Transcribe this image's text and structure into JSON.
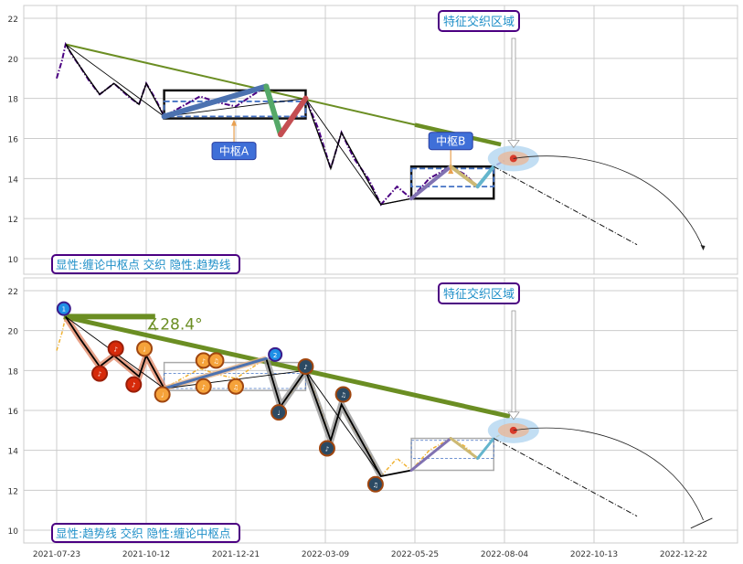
{
  "chart_data": [
    {
      "type": "line",
      "panel": "top",
      "ylim": [
        9.4,
        22.6
      ],
      "yticks": [
        10,
        12,
        14,
        16,
        18,
        20,
        22
      ],
      "xticks": [
        {
          "i": 0,
          "label": "2021-07-23"
        },
        {
          "i": 50,
          "label": "2021-10-12"
        },
        {
          "i": 100,
          "label": "2021-12-21"
        },
        {
          "i": 150,
          "label": "2022-03-09"
        },
        {
          "i": 200,
          "label": "2022-05-25"
        },
        {
          "i": 250,
          "label": "2022-08-04"
        },
        {
          "i": 300,
          "label": "2022-10-13"
        },
        {
          "i": 350,
          "label": "2022-12-22"
        }
      ],
      "grid": true,
      "price": [
        [
          0,
          19.0
        ],
        [
          3,
          19.9
        ],
        [
          5,
          20.7
        ],
        [
          9,
          20.1
        ],
        [
          13,
          19.6
        ],
        [
          18,
          18.9
        ],
        [
          24,
          18.2
        ],
        [
          32,
          18.75
        ],
        [
          40,
          18.1
        ],
        [
          46,
          17.7
        ],
        [
          50,
          18.75
        ],
        [
          55,
          18.0
        ],
        [
          60,
          17.1
        ],
        [
          70,
          17.6
        ],
        [
          80,
          18.1
        ],
        [
          90,
          17.8
        ],
        [
          100,
          17.6
        ],
        [
          110,
          18.2
        ],
        [
          117,
          18.6
        ],
        [
          125,
          16.2
        ],
        [
          132,
          17.0
        ],
        [
          139,
          18.0
        ],
        [
          146,
          16.5
        ],
        [
          153,
          14.5
        ],
        [
          159,
          16.3
        ],
        [
          166,
          15.0
        ],
        [
          174,
          14.0
        ],
        [
          181,
          12.7
        ],
        [
          190,
          13.6
        ],
        [
          198,
          13.0
        ],
        [
          208,
          14.0
        ],
        [
          220,
          14.6
        ],
        [
          228,
          14.2
        ],
        [
          235,
          13.6
        ],
        [
          244,
          14.6
        ],
        [
          250,
          14.9
        ]
      ],
      "pivots": [
        [
          5,
          20.7
        ],
        [
          13,
          19.6
        ],
        [
          24,
          18.2
        ],
        [
          32,
          18.75
        ],
        [
          46,
          17.7
        ],
        [
          50,
          18.75
        ],
        [
          60,
          17.1
        ],
        [
          117,
          18.6
        ],
        [
          125,
          16.2
        ],
        [
          139,
          18.0
        ],
        [
          153,
          14.5
        ],
        [
          159,
          16.3
        ],
        [
          181,
          12.7
        ],
        [
          198,
          13.0
        ],
        [
          220,
          14.6
        ],
        [
          235,
          13.6
        ],
        [
          244,
          14.6
        ]
      ],
      "segments": [
        {
          "from": [
            60,
            17.1
          ],
          "to": [
            117,
            18.6
          ],
          "color": "#4c72b0"
        },
        {
          "from": [
            117,
            18.6
          ],
          "to": [
            125,
            16.2
          ],
          "color": "#55a868"
        },
        {
          "from": [
            125,
            16.2
          ],
          "to": [
            139,
            18.0
          ],
          "color": "#c44e52"
        },
        {
          "from": [
            198,
            13.0
          ],
          "to": [
            220,
            14.6
          ],
          "color": "#8172b2"
        },
        {
          "from": [
            220,
            14.6
          ],
          "to": [
            235,
            13.6
          ],
          "color": "#ccb974"
        },
        {
          "from": [
            235,
            13.6
          ],
          "to": [
            244,
            14.6
          ],
          "color": "#64b5cd"
        }
      ],
      "trendline": {
        "from": [
          5,
          20.7
        ],
        "to": [
          248,
          15.7
        ],
        "color": "#6b8e23"
      },
      "zhongshu": [
        {
          "label": "中枢A",
          "i0": 60,
          "i1": 139,
          "low": 17.0,
          "high": 18.4,
          "inner_low": 17.1,
          "inner_high": 17.85,
          "label_at": [
            99,
            15.4
          ]
        },
        {
          "label": "中枢B",
          "i0": 198,
          "i1": 244,
          "low": 13.0,
          "high": 14.6,
          "inner_low": 13.6,
          "inner_high": 14.5,
          "label_at": [
            220,
            15.9
          ]
        }
      ],
      "forecast_point": [
        255,
        15.0
      ],
      "forecast_line_to": [
        324,
        10.7
      ],
      "forecast_arc_to": [
        361,
        10.5
      ],
      "annotation": "特征交织区域",
      "legend_text": "显性:缠论中枢点 交织 隐性:趋势线"
    },
    {
      "type": "line",
      "panel": "bottom",
      "ylim": [
        9.4,
        22.6
      ],
      "yticks": [
        10,
        12,
        14,
        16,
        18,
        20,
        22
      ],
      "grid": true,
      "trendline": {
        "from": [
          4,
          20.7
        ],
        "to": [
          253,
          15.7
        ],
        "color": "#6b8e23"
      },
      "horizontal": {
        "from": [
          4,
          20.7
        ],
        "to": [
          55,
          20.7
        ]
      },
      "angle_label": "∡28.4°",
      "markers": [
        {
          "i": 4,
          "v": 21.1,
          "kind": "wave",
          "text": "1",
          "fill": "#1f8fe6",
          "edge": "#3a1c8c"
        },
        {
          "i": 24,
          "v": 17.85,
          "kind": "red",
          "text": "♪",
          "fill": "#d62a0a",
          "edge": "#9a1e08"
        },
        {
          "i": 33,
          "v": 19.1,
          "kind": "red",
          "text": "♪",
          "fill": "#d62a0a",
          "edge": "#9a1e08"
        },
        {
          "i": 43,
          "v": 17.3,
          "kind": "red",
          "text": "♪",
          "fill": "#d62a0a",
          "edge": "#9a1e08"
        },
        {
          "i": 49,
          "v": 19.1,
          "kind": "orange",
          "text": "♩",
          "fill": "#f5a23a",
          "edge": "#a0460f"
        },
        {
          "i": 59,
          "v": 16.8,
          "kind": "orange",
          "text": "♩",
          "fill": "#f5a23a",
          "edge": "#a0460f"
        },
        {
          "i": 82,
          "v": 18.5,
          "kind": "orange",
          "text": "♪",
          "fill": "#f5a23a",
          "edge": "#a0460f"
        },
        {
          "i": 82,
          "v": 17.2,
          "kind": "orange",
          "text": "♪",
          "fill": "#f5a23a",
          "edge": "#a0460f"
        },
        {
          "i": 89,
          "v": 18.5,
          "kind": "orange",
          "text": "♫",
          "fill": "#f5a23a",
          "edge": "#a0460f"
        },
        {
          "i": 100,
          "v": 17.2,
          "kind": "orange",
          "text": "♫",
          "fill": "#f5a23a",
          "edge": "#a0460f"
        },
        {
          "i": 122,
          "v": 18.8,
          "kind": "wave",
          "text": "2",
          "fill": "#1f8fe6",
          "edge": "#3a1c8c"
        },
        {
          "i": 124,
          "v": 15.9,
          "kind": "dark",
          "text": "♩",
          "fill": "#2c4a63",
          "edge": "#a0460f"
        },
        {
          "i": 139,
          "v": 18.2,
          "kind": "dark",
          "text": "♪",
          "fill": "#2c4a63",
          "edge": "#a0460f"
        },
        {
          "i": 151,
          "v": 14.1,
          "kind": "dark",
          "text": "♪",
          "fill": "#2c4a63",
          "edge": "#a0460f"
        },
        {
          "i": 160,
          "v": 16.8,
          "kind": "dark",
          "text": "♫",
          "fill": "#2c4a63",
          "edge": "#a0460f"
        },
        {
          "i": 178,
          "v": 12.3,
          "kind": "dark",
          "text": "♫",
          "fill": "#2c4a63",
          "edge": "#a0460f"
        }
      ],
      "annotation": "特征交织区域",
      "legend_text": "显性:趋势线 交织 隐性:缠论中枢点"
    }
  ]
}
